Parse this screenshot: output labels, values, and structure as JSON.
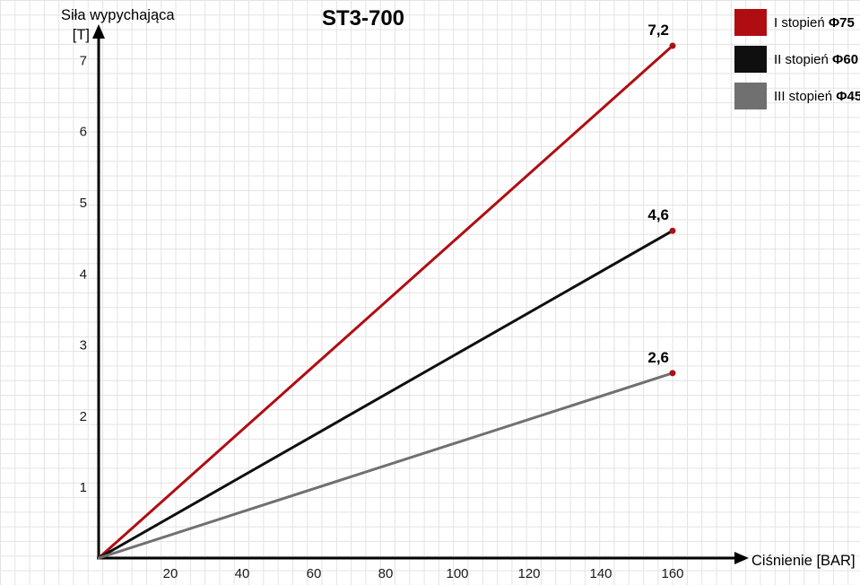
{
  "title": "ST3-700",
  "y_axis": {
    "label": "Siła wypychająca",
    "unit": "[T]"
  },
  "x_axis": {
    "label": "Ciśnienie [BAR]"
  },
  "legend": [
    {
      "name": "I stopień",
      "diameter": "Φ75",
      "color": "#b00d12"
    },
    {
      "name": "II stopień",
      "diameter": "Φ60",
      "color": "#0f0f0f"
    },
    {
      "name": "III stopień",
      "diameter": "Φ45",
      "color": "#707070"
    }
  ],
  "chart_data": {
    "type": "line",
    "title": "ST3-700",
    "xlabel": "Ciśnienie [BAR]",
    "ylabel": "Siła wypychająca [T]",
    "xticks": [
      20,
      40,
      60,
      80,
      100,
      120,
      140,
      160
    ],
    "yticks": [
      1,
      2,
      3,
      4,
      5,
      6,
      7
    ],
    "xlim": [
      0,
      180
    ],
    "ylim": [
      0,
      7.5
    ],
    "grid": true,
    "legend_position": "top-right",
    "point_color": "#a51417",
    "series": [
      {
        "name": "I stopień Φ75",
        "color": "#b00d12",
        "x": [
          0,
          160
        ],
        "values": [
          0,
          7.2
        ],
        "end_label": "7,2"
      },
      {
        "name": "II stopień Φ60",
        "color": "#0f0f0f",
        "x": [
          0,
          160
        ],
        "values": [
          0,
          4.6
        ],
        "end_label": "4,6"
      },
      {
        "name": "III stopień Φ45",
        "color": "#707070",
        "x": [
          0,
          160
        ],
        "values": [
          0,
          2.6
        ],
        "end_label": "2,6"
      }
    ]
  }
}
